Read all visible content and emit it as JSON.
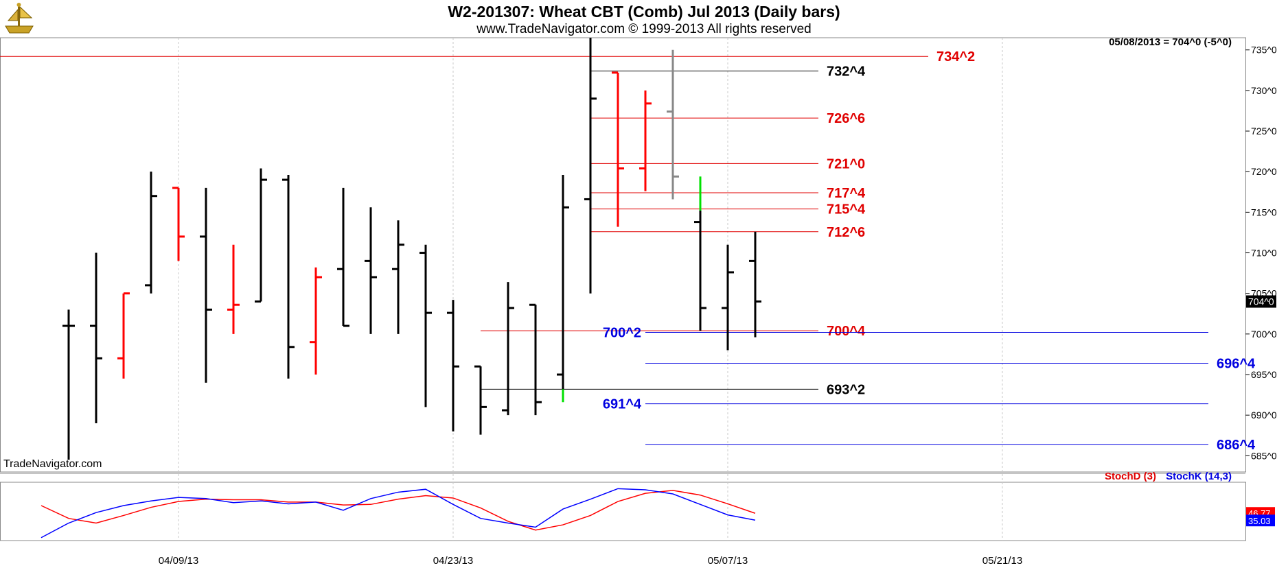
{
  "header": {
    "title": "W2-201307:  Wheat CBT (Comb) Jul 2013  (Daily bars)",
    "subtitle": "www.TradeNavigator.com © 1999-2013 All rights reserved",
    "info": "05/08/2013 = 704^0 (-5^0)",
    "watermark": "TradeNavigator.com"
  },
  "indicator": {
    "stoch_d_label": "StochD (3)",
    "stoch_k_label": "StochK (14,3)",
    "d_last": "46.77",
    "k_last": "35.03"
  },
  "colors": {
    "up_bar": "#000000",
    "down_bar": "#ff0000",
    "red_level": "#e00000",
    "blue_level": "#0000e0",
    "black_level": "#000000",
    "stoch_d": "#ff0000",
    "stoch_k": "#0000ff",
    "grid": "#c8c8c8"
  },
  "chart_data": {
    "type": "ohlc",
    "price_axis": {
      "ylim": [
        683,
        736.5
      ],
      "ticks": [
        {
          "v": 735,
          "label": "735^0"
        },
        {
          "v": 730,
          "label": "730^0"
        },
        {
          "v": 725,
          "label": "725^0"
        },
        {
          "v": 720,
          "label": "720^0"
        },
        {
          "v": 715,
          "label": "715^0"
        },
        {
          "v": 710,
          "label": "710^0"
        },
        {
          "v": 705,
          "label": "705^0"
        },
        {
          "v": 700,
          "label": "700^0"
        },
        {
          "v": 695,
          "label": "695^0"
        },
        {
          "v": 690,
          "label": "690^0"
        },
        {
          "v": 685,
          "label": "685^0"
        }
      ],
      "last_label": "704^0",
      "last_value": 704
    },
    "x_axis": {
      "ticks": [
        {
          "i": 5,
          "label": "04/09/13"
        },
        {
          "i": 15,
          "label": "04/23/13"
        },
        {
          "i": 25,
          "label": "05/07/13"
        },
        {
          "i": 35,
          "label": "05/21/13"
        }
      ],
      "slots": 43
    },
    "bars": [
      {
        "i": 1,
        "o": 701,
        "h": 703,
        "l": 684.5,
        "c": 701,
        "color": "up"
      },
      {
        "i": 2,
        "o": 701,
        "h": 710,
        "l": 689,
        "c": 697,
        "color": "up"
      },
      {
        "i": 3,
        "o": 697,
        "h": 705,
        "l": 694.5,
        "c": 705,
        "color": "down"
      },
      {
        "i": 4,
        "o": 706,
        "h": 720,
        "l": 705,
        "c": 717,
        "color": "up"
      },
      {
        "i": 5,
        "o": 718,
        "h": 718,
        "l": 709,
        "c": 712,
        "color": "down"
      },
      {
        "i": 6,
        "o": 712,
        "h": 718,
        "l": 694,
        "c": 703,
        "color": "up"
      },
      {
        "i": 7,
        "o": 703,
        "h": 711,
        "l": 700,
        "c": 703.6,
        "color": "down"
      },
      {
        "i": 8,
        "o": 704,
        "h": 720.4,
        "l": 704,
        "c": 719,
        "color": "up"
      },
      {
        "i": 9,
        "o": 719,
        "h": 719.6,
        "l": 694.5,
        "c": 698.4,
        "color": "up"
      },
      {
        "i": 10,
        "o": 699,
        "h": 708.2,
        "l": 695,
        "c": 707,
        "color": "down"
      },
      {
        "i": 11,
        "o": 708,
        "h": 718,
        "l": 701,
        "c": 701,
        "color": "up"
      },
      {
        "i": 12,
        "o": 709,
        "h": 715.6,
        "l": 700,
        "c": 707,
        "color": "up"
      },
      {
        "i": 13,
        "o": 708,
        "h": 714,
        "l": 700,
        "c": 711,
        "color": "up"
      },
      {
        "i": 14,
        "o": 710,
        "h": 711,
        "l": 691,
        "c": 702.6,
        "color": "up"
      },
      {
        "i": 15,
        "o": 702.6,
        "h": 704.2,
        "l": 688,
        "c": 696,
        "color": "up"
      },
      {
        "i": 16,
        "o": 696,
        "h": 696,
        "l": 687.6,
        "c": 691,
        "color": "up"
      },
      {
        "i": 17,
        "o": 690.6,
        "h": 706.4,
        "l": 690,
        "c": 703.2,
        "color": "up"
      },
      {
        "i": 18,
        "o": 703.6,
        "h": 703.6,
        "l": 690,
        "c": 691.6,
        "color": "up"
      },
      {
        "i": 19,
        "o": 695,
        "h": 719.6,
        "l": 692,
        "c": 715.6,
        "color": "up"
      },
      {
        "i": 20,
        "o": 716.6,
        "h": 736.5,
        "l": 705,
        "c": 729,
        "color": "up"
      },
      {
        "i": 21,
        "o": 732.2,
        "h": 732.2,
        "l": 713.2,
        "c": 720.4,
        "color": "down"
      },
      {
        "i": 22,
        "o": 720.4,
        "h": 730,
        "l": 717.6,
        "c": 728.4,
        "color": "down"
      },
      {
        "i": 23,
        "o": 727.4,
        "h": 735,
        "l": 716.6,
        "c": 719.4,
        "color": "gray"
      },
      {
        "i": 24,
        "o": 713.8,
        "h": 715.2,
        "l": 700.4,
        "c": 703.2,
        "color": "up"
      },
      {
        "i": 25,
        "o": 703.2,
        "h": 711,
        "l": 698,
        "c": 707.6,
        "color": "up"
      },
      {
        "i": 26,
        "o": 709,
        "h": 712.6,
        "l": 699.6,
        "c": 704,
        "color": "up"
      }
    ],
    "green_segments": [
      {
        "i": 19,
        "from": 693.2,
        "to": 691.6
      },
      {
        "i": 24,
        "from": 719.4,
        "to": 715.2
      }
    ],
    "levels": [
      {
        "value": 734.2,
        "label": "734^2",
        "color": "red",
        "from": -1,
        "to": 32.3,
        "label_pos": "right"
      },
      {
        "value": 732.4,
        "label": "732^4",
        "color": "black",
        "from": 20,
        "to": 28.3,
        "label_pos": "right"
      },
      {
        "value": 726.6,
        "label": "726^6",
        "color": "red",
        "from": 20,
        "to": 28.3,
        "label_pos": "right"
      },
      {
        "value": 721,
        "label": "721^0",
        "color": "red",
        "from": 20,
        "to": 28.3,
        "label_pos": "right"
      },
      {
        "value": 717.4,
        "label": "717^4",
        "color": "red",
        "from": 20,
        "to": 28.3,
        "label_pos": "right"
      },
      {
        "value": 715.4,
        "label": "715^4",
        "color": "red",
        "from": 20,
        "to": 28.3,
        "label_pos": "right"
      },
      {
        "value": 712.6,
        "label": "712^6",
        "color": "red",
        "from": 20,
        "to": 28.3,
        "label_pos": "right"
      },
      {
        "value": 700.4,
        "label": "700^4",
        "color": "red",
        "from": 16,
        "to": 28.3,
        "label_pos": "right"
      },
      {
        "value": 700.2,
        "label": "700^2",
        "color": "blue",
        "from": 22,
        "to": 42.5,
        "label_pos": "left"
      },
      {
        "value": 696.4,
        "label": "696^4",
        "color": "blue",
        "from": 22,
        "to": 42.5,
        "label_pos": "right"
      },
      {
        "value": 693.2,
        "label": "693^2",
        "color": "black",
        "from": 16,
        "to": 28.3,
        "label_pos": "right"
      },
      {
        "value": 691.4,
        "label": "691^4",
        "color": "blue",
        "from": 22,
        "to": 42.5,
        "label_pos": "left"
      },
      {
        "value": 686.4,
        "label": "686^4",
        "color": "blue",
        "from": 22,
        "to": 42.5,
        "label_pos": "right"
      }
    ],
    "stochastic": {
      "ylim": [
        0,
        100
      ],
      "stoch_d": [
        [
          0,
          60
        ],
        [
          1,
          38
        ],
        [
          2,
          30
        ],
        [
          3,
          43
        ],
        [
          4,
          57
        ],
        [
          5,
          67
        ],
        [
          6,
          71
        ],
        [
          7,
          70
        ],
        [
          8,
          70
        ],
        [
          9,
          66
        ],
        [
          10,
          66
        ],
        [
          11,
          61
        ],
        [
          12,
          62
        ],
        [
          13,
          71
        ],
        [
          14,
          77
        ],
        [
          15,
          73
        ],
        [
          16,
          56
        ],
        [
          17,
          33
        ],
        [
          18,
          18
        ],
        [
          19,
          27
        ],
        [
          20,
          43
        ],
        [
          21,
          67
        ],
        [
          22,
          81
        ],
        [
          23,
          86
        ],
        [
          24,
          78
        ],
        [
          25,
          63
        ],
        [
          26,
          46.77
        ]
      ],
      "stoch_k": [
        [
          0,
          5
        ],
        [
          1,
          30
        ],
        [
          2,
          48
        ],
        [
          3,
          60
        ],
        [
          4,
          68
        ],
        [
          5,
          74
        ],
        [
          6,
          72
        ],
        [
          7,
          65
        ],
        [
          8,
          68
        ],
        [
          9,
          63
        ],
        [
          10,
          66
        ],
        [
          11,
          52
        ],
        [
          12,
          72
        ],
        [
          13,
          83
        ],
        [
          14,
          88
        ],
        [
          15,
          62
        ],
        [
          16,
          38
        ],
        [
          17,
          30
        ],
        [
          18,
          23
        ],
        [
          19,
          54
        ],
        [
          20,
          71
        ],
        [
          21,
          89
        ],
        [
          22,
          87
        ],
        [
          23,
          80
        ],
        [
          24,
          62
        ],
        [
          25,
          44
        ],
        [
          26,
          35.03
        ]
      ]
    }
  }
}
